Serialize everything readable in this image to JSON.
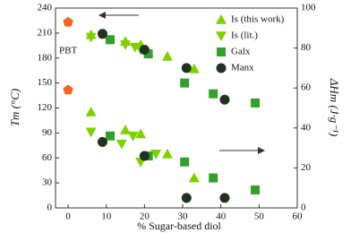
{
  "chart_data": {
    "type": "scatter",
    "xlabel": "% Sugar-based diol",
    "ylabel": "Tm (°C)",
    "y2label": "ΔHm (J·g⁻¹)",
    "annotations": [
      "PBT"
    ],
    "xlim": [
      -3.3,
      60
    ],
    "xticks": [
      0,
      10,
      20,
      30,
      40,
      50,
      60
    ],
    "ylim": [
      0,
      240
    ],
    "yticks": [
      0,
      30,
      60,
      90,
      120,
      150,
      180,
      210,
      240
    ],
    "y2lim": [
      0,
      100
    ],
    "y2ticks": [
      0,
      20,
      40,
      60,
      80,
      100
    ],
    "series": [
      {
        "name": "Is (this work)",
        "color": "#7fd000",
        "marker": "triangle-up",
        "axis": "y",
        "x": [
          6,
          15,
          19,
          26,
          33
        ],
        "values": [
          208,
          200,
          196,
          182,
          167
        ]
      },
      {
        "name": "Is (lit.)",
        "color": "#7fd000",
        "marker": "triangle-down",
        "axis": "y",
        "x": [
          6,
          15,
          17.5,
          19
        ],
        "values": [
          205,
          196,
          193,
          190
        ]
      },
      {
        "name": "Galx",
        "color": "#33a02c",
        "marker": "square",
        "axis": "y",
        "x": [
          11,
          21,
          30.5,
          38,
          49
        ],
        "values": [
          202,
          185,
          150,
          137,
          126
        ]
      },
      {
        "name": "Manx",
        "color": "#1f3320",
        "marker": "circle",
        "axis": "y",
        "x": [
          9,
          20,
          31,
          41
        ],
        "values": [
          209,
          190,
          168,
          130
        ]
      },
      {
        "color": "#f26522",
        "marker": "pentagon",
        "axis": "y",
        "x": [
          0
        ],
        "values": [
          223
        ]
      },
      {
        "color": "#7fd000",
        "marker": "triangle-up",
        "axis": "y2",
        "x": [
          6,
          15,
          19,
          26,
          33
        ],
        "values": [
          48,
          39,
          37,
          27,
          15
        ]
      },
      {
        "color": "#7fd000",
        "marker": "triangle-down",
        "axis": "y2",
        "x": [
          6,
          14,
          17,
          19,
          23
        ],
        "values": [
          38,
          32,
          36,
          23,
          27
        ]
      },
      {
        "color": "#33a02c",
        "marker": "square",
        "axis": "y2",
        "x": [
          11,
          21,
          30.5,
          38,
          49
        ],
        "values": [
          36,
          26,
          23,
          15,
          9
        ]
      },
      {
        "color": "#1f3320",
        "marker": "circle",
        "axis": "y2",
        "x": [
          9,
          20,
          31,
          41
        ],
        "values": [
          33,
          26,
          5,
          5
        ]
      },
      {
        "color": "#f26522",
        "marker": "pentagon",
        "axis": "y2",
        "x": [
          0
        ],
        "values": [
          59
        ]
      }
    ]
  }
}
